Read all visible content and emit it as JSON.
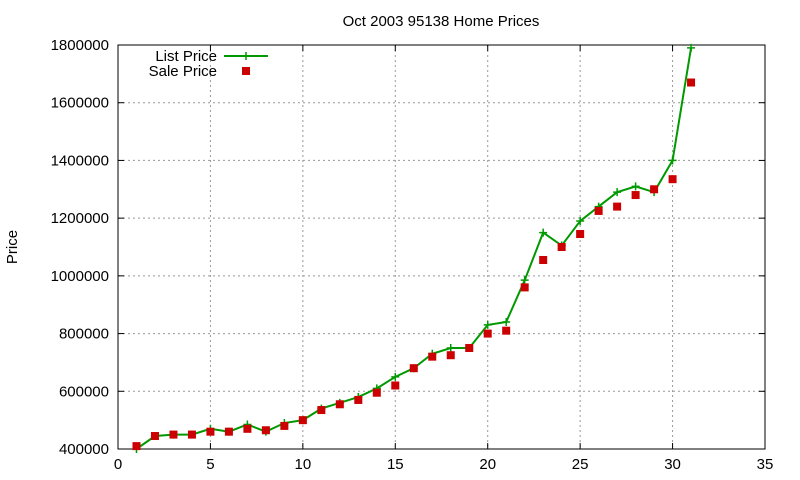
{
  "chart_data": {
    "type": "line",
    "title": "Oct 2003 95138 Home Prices",
    "xlabel": "",
    "ylabel": "Price",
    "xlim": [
      0,
      35
    ],
    "ylim": [
      400000,
      1800000
    ],
    "xticks": [
      0,
      5,
      10,
      15,
      20,
      25,
      30,
      35
    ],
    "yticks": [
      400000,
      600000,
      800000,
      1000000,
      1200000,
      1400000,
      1600000,
      1800000
    ],
    "grid": true,
    "legend_position": "top-left",
    "series": [
      {
        "name": "List Price",
        "style": "line-plus",
        "color": "#009900",
        "x": [
          1,
          2,
          3,
          4,
          5,
          6,
          7,
          8,
          9,
          10,
          11,
          12,
          13,
          14,
          15,
          16,
          17,
          18,
          19,
          20,
          21,
          22,
          23,
          24,
          25,
          26,
          27,
          28,
          29,
          30,
          31
        ],
        "values": [
          400000,
          445000,
          450000,
          450000,
          470000,
          460000,
          485000,
          460000,
          490000,
          500000,
          540000,
          560000,
          580000,
          610000,
          650000,
          680000,
          730000,
          750000,
          750000,
          830000,
          840000,
          985000,
          1150000,
          1105000,
          1190000,
          1240000,
          1290000,
          1310000,
          1290000,
          1400000,
          1790000
        ]
      },
      {
        "name": "Sale Price",
        "style": "square",
        "color": "#cc0000",
        "x": [
          1,
          2,
          3,
          4,
          5,
          6,
          7,
          8,
          9,
          10,
          11,
          12,
          13,
          14,
          15,
          16,
          17,
          18,
          19,
          20,
          21,
          22,
          23,
          24,
          25,
          26,
          27,
          28,
          29,
          30,
          31
        ],
        "values": [
          410000,
          445000,
          450000,
          450000,
          460000,
          460000,
          470000,
          465000,
          480000,
          500000,
          535000,
          555000,
          570000,
          595000,
          620000,
          680000,
          720000,
          725000,
          750000,
          800000,
          810000,
          960000,
          1055000,
          1100000,
          1145000,
          1225000,
          1240000,
          1280000,
          1300000,
          1335000,
          1670000
        ]
      }
    ]
  }
}
